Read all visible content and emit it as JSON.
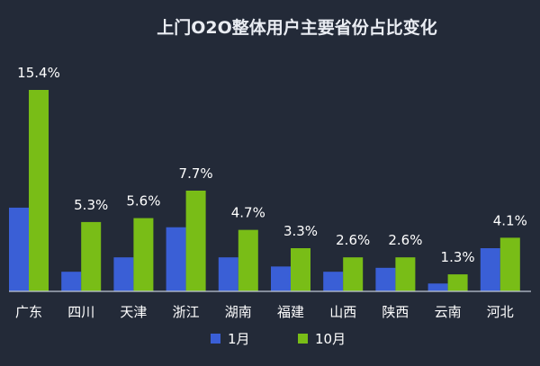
{
  "chart_data": {
    "type": "bar",
    "title": "上门O2O整体用户主要省份占比变化",
    "categories": [
      "广东",
      "四川",
      "天津",
      "浙江",
      "湖南",
      "福建",
      "山西",
      "陕西",
      "云南",
      "河北"
    ],
    "series": [
      {
        "name": "1月",
        "color": "#3a5fd6",
        "values": [
          6.4,
          1.5,
          2.6,
          4.9,
          2.6,
          1.9,
          1.5,
          1.8,
          0.6,
          3.3
        ]
      },
      {
        "name": "10月",
        "color": "#79bd17",
        "values": [
          15.4,
          5.3,
          5.6,
          7.7,
          4.7,
          3.3,
          2.6,
          2.6,
          1.3,
          4.1
        ]
      }
    ],
    "data_labels": [
      "15.4%",
      "5.3%",
      "5.6%",
      "7.7%",
      "4.7%",
      "3.3%",
      "2.6%",
      "2.6%",
      "1.3%",
      "4.1%"
    ],
    "ylim": [
      0,
      16
    ],
    "grid": false,
    "legend_position": "bottom-center",
    "axis_color": "#bfc6d4"
  }
}
